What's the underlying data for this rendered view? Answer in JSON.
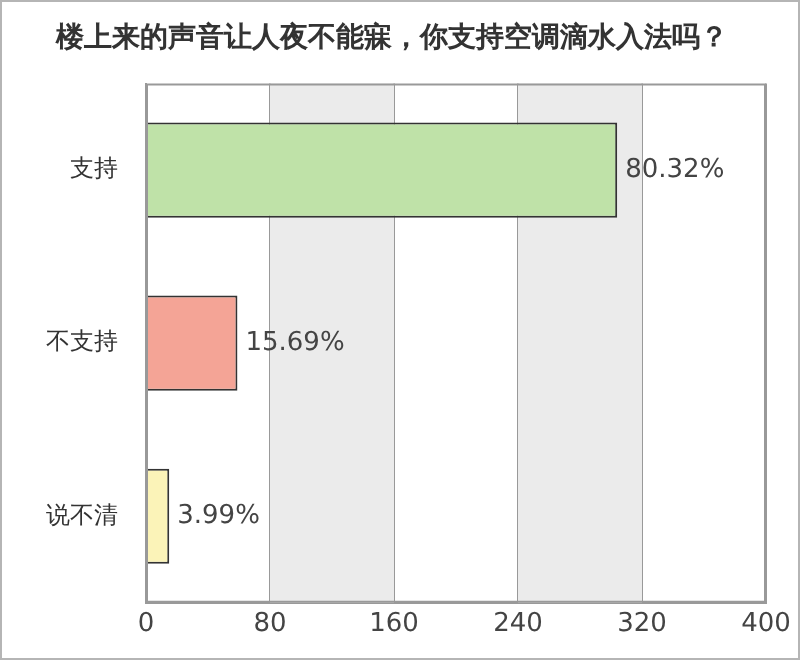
{
  "chart_data": {
    "type": "bar",
    "orientation": "horizontal",
    "title": "楼上来的声音让人夜不能寐，你支持空调滴水入法吗？",
    "categories": [
      "支持",
      "不支持",
      "说不清"
    ],
    "values": [
      304,
      59,
      15
    ],
    "colors": [
      "#bfe2a8",
      "#f4a496",
      "#fbf3b8"
    ],
    "annotations": [
      {
        "text": "80.32%",
        "x": 304,
        "y": "支持"
      },
      {
        "text": "15.69%",
        "x": 59,
        "y": "不支持"
      },
      {
        "text": "3.99%",
        "x": 15,
        "y": "说不清"
      }
    ],
    "xlim": [
      0,
      400
    ],
    "xticks": [
      0,
      80,
      160,
      240,
      320,
      400
    ],
    "grid": "x",
    "legend": false,
    "bands": [
      {
        "axis": "x",
        "from": 80,
        "to": 160,
        "color": "#ebebeb"
      },
      {
        "axis": "x",
        "from": 240,
        "to": 320,
        "color": "#ebebeb"
      }
    ]
  }
}
